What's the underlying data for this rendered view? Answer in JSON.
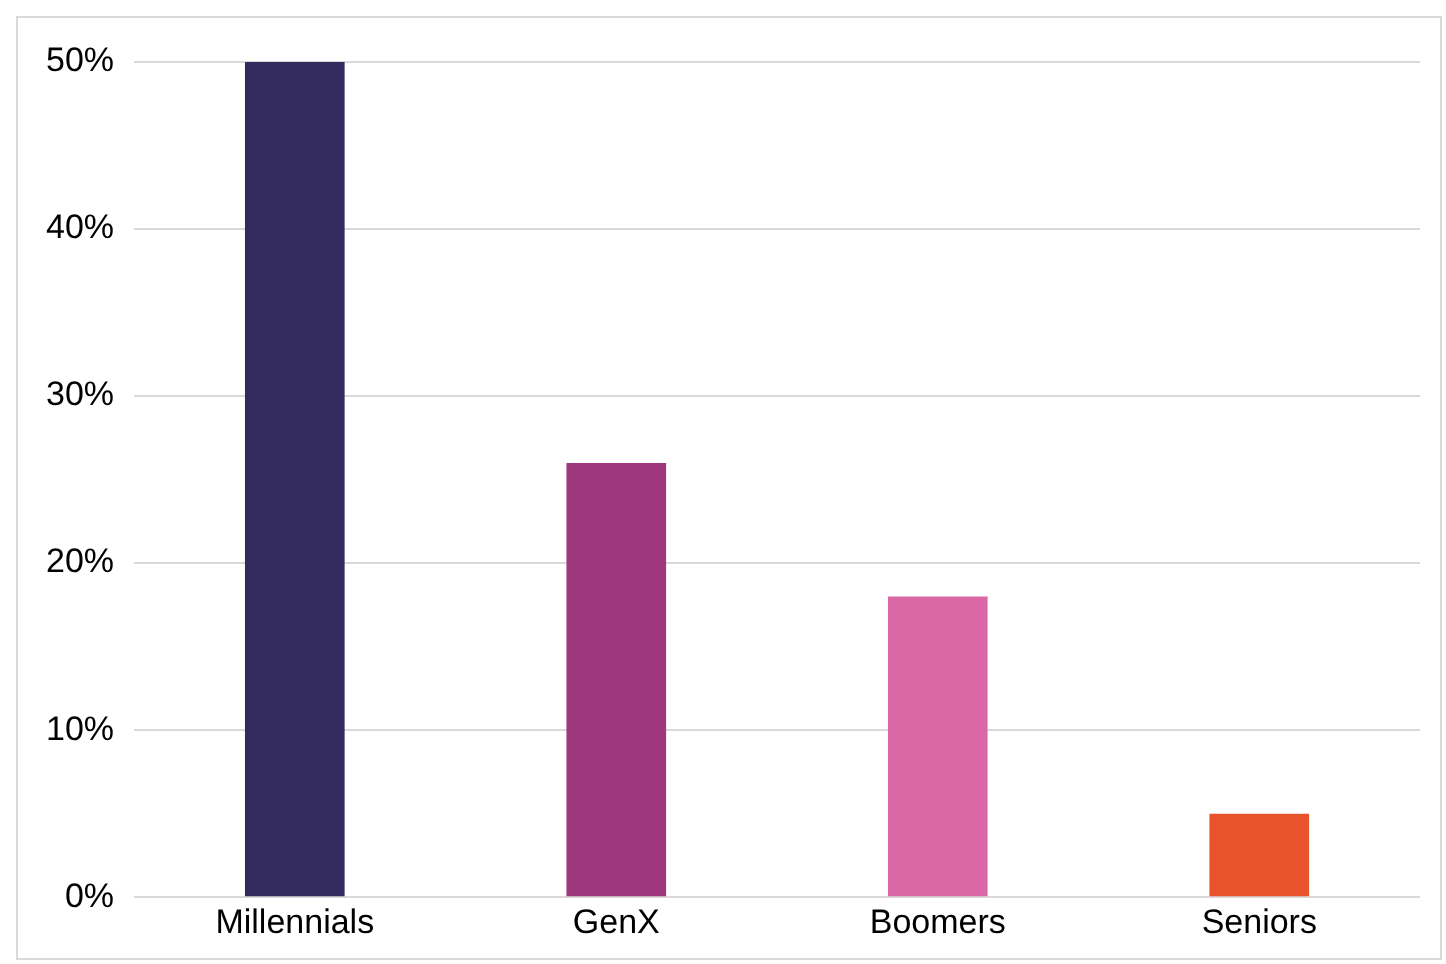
{
  "chart_data": {
    "type": "bar",
    "categories": [
      "Millennials",
      "GenX",
      "Boomers",
      "Seniors"
    ],
    "values": [
      50,
      26,
      18,
      5
    ],
    "colors": [
      "#332a5e",
      "#9e377e",
      "#db68a6",
      "#e9532b"
    ],
    "ylim": [
      0,
      50
    ],
    "yticks": [
      {
        "value": 0,
        "label": "0%"
      },
      {
        "value": 10,
        "label": "10%"
      },
      {
        "value": 20,
        "label": "20%"
      },
      {
        "value": 30,
        "label": "30%"
      },
      {
        "value": 40,
        "label": "40%"
      },
      {
        "value": 50,
        "label": "50%"
      }
    ],
    "grid": "y",
    "legend": false
  }
}
